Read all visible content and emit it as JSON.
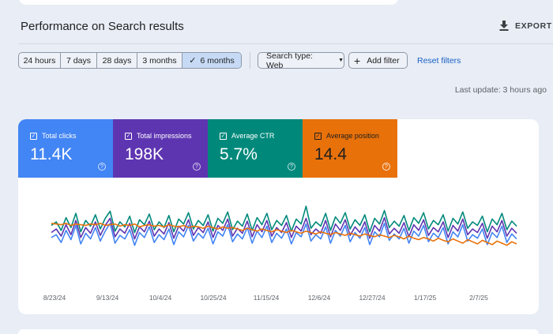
{
  "header": {
    "title": "Performance on Search results",
    "export_label": "EXPORT"
  },
  "date_ranges": [
    {
      "label": "24 hours",
      "active": false
    },
    {
      "label": "7 days",
      "active": false
    },
    {
      "label": "28 days",
      "active": false
    },
    {
      "label": "3 months",
      "active": false
    },
    {
      "label": "6 months",
      "active": true
    }
  ],
  "filters": {
    "search_type": "Search type: Web",
    "add_filter": "Add filter",
    "reset": "Reset filters"
  },
  "last_update": "Last update: 3 hours ago",
  "metrics": [
    {
      "label": "Total clicks",
      "value": "11.4K",
      "color": "#4285f4"
    },
    {
      "label": "Total impressions",
      "value": "198K",
      "color": "#5e35b1"
    },
    {
      "label": "Average CTR",
      "value": "5.7%",
      "color": "#00897b"
    },
    {
      "label": "Average position",
      "value": "14.4",
      "color": "#e8710a"
    }
  ],
  "chart_data": {
    "type": "line",
    "x_ticks": [
      "8/23/24",
      "9/13/24",
      "10/4/24",
      "10/25/24",
      "11/15/24",
      "12/6/24",
      "12/27/24",
      "1/17/25",
      "2/7/25"
    ],
    "series": [
      {
        "color": "#4285f4",
        "values": [
          0.38,
          0.42,
          0.31,
          0.48,
          0.35,
          0.55,
          0.29,
          0.44,
          0.36,
          0.52,
          0.33,
          0.47,
          0.58,
          0.3,
          0.41,
          0.36,
          0.49,
          0.27,
          0.45,
          0.38,
          0.53,
          0.31,
          0.42,
          0.35,
          0.5,
          0.28,
          0.46,
          0.39,
          0.55,
          0.33,
          0.44,
          0.37,
          0.51,
          0.29,
          0.46,
          0.4,
          0.56,
          0.32,
          0.43,
          0.36,
          0.52,
          0.3,
          0.47,
          0.38,
          0.54,
          0.31,
          0.44,
          0.37,
          0.5,
          0.29,
          0.45,
          0.39,
          0.57,
          0.33,
          0.42,
          0.36,
          0.53,
          0.3,
          0.48,
          0.4,
          0.55,
          0.32,
          0.45,
          0.37,
          0.52,
          0.28,
          0.46,
          0.39,
          0.58,
          0.34,
          0.43,
          0.36,
          0.51,
          0.3,
          0.47,
          0.4,
          0.55,
          0.32,
          0.44,
          0.38,
          0.52,
          0.29,
          0.46,
          0.39,
          0.56,
          0.33,
          0.42,
          0.37,
          0.5,
          0.28,
          0.45,
          0.38,
          0.54,
          0.31,
          0.43,
          0.36
        ]
      },
      {
        "color": "#5e35b1",
        "values": [
          0.45,
          0.5,
          0.4,
          0.56,
          0.42,
          0.62,
          0.38,
          0.52,
          0.44,
          0.6,
          0.41,
          0.55,
          0.65,
          0.39,
          0.5,
          0.44,
          0.58,
          0.36,
          0.53,
          0.46,
          0.61,
          0.4,
          0.5,
          0.43,
          0.59,
          0.37,
          0.54,
          0.47,
          0.63,
          0.41,
          0.52,
          0.45,
          0.6,
          0.38,
          0.55,
          0.48,
          0.64,
          0.4,
          0.51,
          0.44,
          0.61,
          0.39,
          0.56,
          0.46,
          0.62,
          0.4,
          0.52,
          0.45,
          0.59,
          0.38,
          0.54,
          0.47,
          0.65,
          0.42,
          0.5,
          0.44,
          0.62,
          0.39,
          0.57,
          0.48,
          0.63,
          0.41,
          0.53,
          0.45,
          0.6,
          0.37,
          0.55,
          0.47,
          0.66,
          0.43,
          0.51,
          0.44,
          0.59,
          0.39,
          0.56,
          0.48,
          0.63,
          0.41,
          0.52,
          0.46,
          0.6,
          0.38,
          0.55,
          0.47,
          0.64,
          0.42,
          0.5,
          0.45,
          0.58,
          0.37,
          0.54,
          0.46,
          0.62,
          0.4,
          0.51,
          0.44
        ]
      },
      {
        "color": "#00897b",
        "values": [
          0.55,
          0.6,
          0.48,
          0.66,
          0.52,
          0.72,
          0.46,
          0.62,
          0.54,
          0.7,
          0.5,
          0.65,
          0.75,
          0.47,
          0.6,
          0.53,
          0.68,
          0.45,
          0.63,
          0.56,
          0.71,
          0.49,
          0.6,
          0.52,
          0.69,
          0.46,
          0.64,
          0.57,
          0.73,
          0.5,
          0.62,
          0.55,
          0.7,
          0.47,
          0.65,
          0.58,
          0.74,
          0.49,
          0.61,
          0.54,
          0.71,
          0.48,
          0.66,
          0.56,
          0.72,
          0.49,
          0.62,
          0.55,
          0.69,
          0.47,
          0.64,
          0.57,
          0.82,
          0.51,
          0.6,
          0.54,
          0.72,
          0.48,
          0.67,
          0.58,
          0.73,
          0.5,
          0.63,
          0.55,
          0.7,
          0.46,
          0.65,
          0.57,
          0.76,
          0.52,
          0.61,
          0.54,
          0.69,
          0.48,
          0.66,
          0.58,
          0.73,
          0.5,
          0.62,
          0.56,
          0.7,
          0.47,
          0.65,
          0.57,
          0.74,
          0.51,
          0.6,
          0.55,
          0.68,
          0.46,
          0.64,
          0.56,
          0.72,
          0.49,
          0.61,
          0.54
        ]
      },
      {
        "color": "#e8710a",
        "values": [
          0.58,
          0.57,
          0.56,
          0.58,
          0.55,
          0.57,
          0.56,
          0.55,
          0.57,
          0.56,
          0.58,
          0.55,
          0.56,
          0.57,
          0.54,
          0.56,
          0.55,
          0.57,
          0.53,
          0.55,
          0.56,
          0.54,
          0.55,
          0.53,
          0.56,
          0.54,
          0.53,
          0.55,
          0.52,
          0.54,
          0.53,
          0.51,
          0.54,
          0.52,
          0.5,
          0.53,
          0.51,
          0.52,
          0.5,
          0.48,
          0.51,
          0.49,
          0.47,
          0.5,
          0.48,
          0.46,
          0.49,
          0.47,
          0.45,
          0.48,
          0.46,
          0.44,
          0.47,
          0.45,
          0.43,
          0.46,
          0.44,
          0.42,
          0.45,
          0.43,
          0.41,
          0.44,
          0.42,
          0.4,
          0.43,
          0.41,
          0.39,
          0.42,
          0.4,
          0.38,
          0.41,
          0.39,
          0.36,
          0.4,
          0.37,
          0.35,
          0.38,
          0.36,
          0.33,
          0.37,
          0.34,
          0.32,
          0.36,
          0.33,
          0.3,
          0.35,
          0.32,
          0.29,
          0.34,
          0.31,
          0.28,
          0.33,
          0.3,
          0.27,
          0.32,
          0.29
        ]
      }
    ]
  }
}
